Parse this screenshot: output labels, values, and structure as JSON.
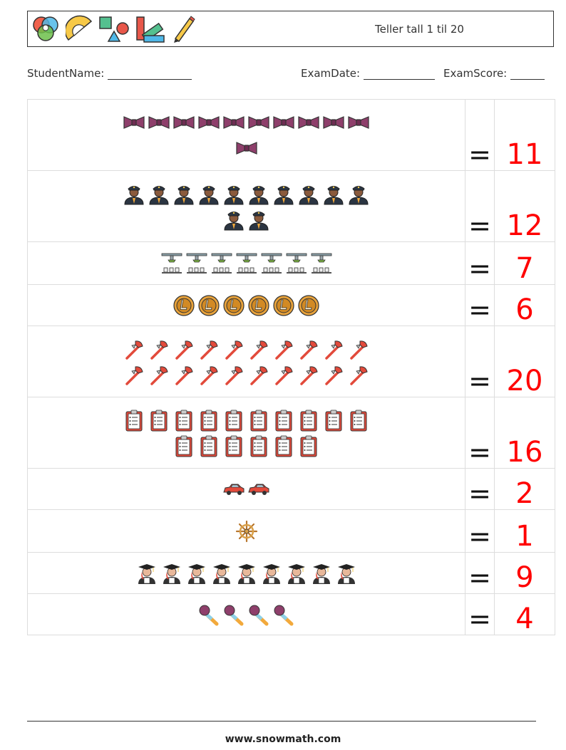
{
  "header": {
    "title": "Teller tall 1 til 20",
    "logos": [
      "color-wheel-icon",
      "protractor-icon",
      "shapes-icon",
      "ruler-palette-icon",
      "pencil-icon"
    ]
  },
  "info": {
    "student_label": "StudentName:",
    "date_label": "ExamDate:",
    "score_label": "ExamScore:"
  },
  "rows": [
    {
      "icon": "bowtie-icon",
      "count": 11,
      "eq": "=",
      "answer": "11"
    },
    {
      "icon": "police-officer-icon",
      "count": 12,
      "eq": "=",
      "answer": "12"
    },
    {
      "icon": "ceiling-shower-icon",
      "count": 7,
      "eq": "=",
      "answer": "7"
    },
    {
      "icon": "litecoin-icon",
      "count": 6,
      "eq": "=",
      "answer": "6"
    },
    {
      "icon": "fire-axe-icon",
      "count": 20,
      "eq": "=",
      "answer": "20"
    },
    {
      "icon": "clipboard-checklist-icon",
      "count": 16,
      "eq": "=",
      "answer": "16"
    },
    {
      "icon": "car-icon",
      "count": 2,
      "eq": "=",
      "answer": "2"
    },
    {
      "icon": "ship-wheel-icon",
      "count": 1,
      "eq": "=",
      "answer": "1"
    },
    {
      "icon": "graduate-icon",
      "count": 9,
      "eq": "=",
      "answer": "9"
    },
    {
      "icon": "microphone-icon",
      "count": 4,
      "eq": "=",
      "answer": "4"
    }
  ],
  "footer": {
    "url": "www.snowmath.com"
  }
}
